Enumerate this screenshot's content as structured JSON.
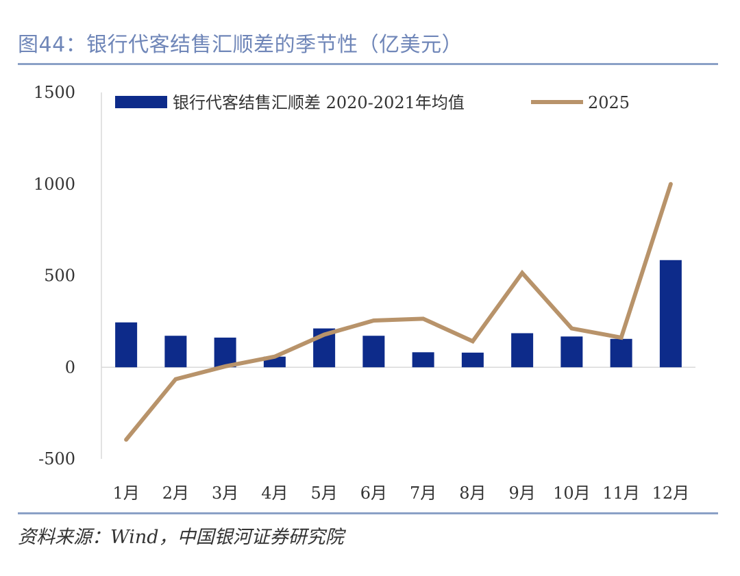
{
  "figure": {
    "title": "图44：银行代客结售汇顺差的季节性（亿美元）",
    "source": "资料来源：Wind，中国银河证券研究院"
  },
  "chart_data": {
    "type": "bar",
    "title": "图44：银行代客结售汇顺差的季节性（亿美元）",
    "xlabel": "",
    "ylabel": "",
    "categories": [
      "1月",
      "2月",
      "3月",
      "4月",
      "5月",
      "6月",
      "7月",
      "8月",
      "9月",
      "10月",
      "11月",
      "12月"
    ],
    "ylim": [
      -500,
      1500
    ],
    "yticks": [
      1500,
      1000,
      500,
      0,
      -500
    ],
    "grid": false,
    "legend_position": "top",
    "series": [
      {
        "name": "银行代客结售汇顺差 2020-2021年均值",
        "kind": "bar",
        "color": "#0d2b8a",
        "values": [
          245,
          172,
          162,
          58,
          212,
          172,
          82,
          80,
          186,
          168,
          155,
          585
        ]
      },
      {
        "name": "2025",
        "kind": "line",
        "color": "#b8936a",
        "values": [
          -395,
          -65,
          5,
          58,
          178,
          255,
          265,
          142,
          515,
          212,
          162,
          1000
        ]
      }
    ]
  }
}
